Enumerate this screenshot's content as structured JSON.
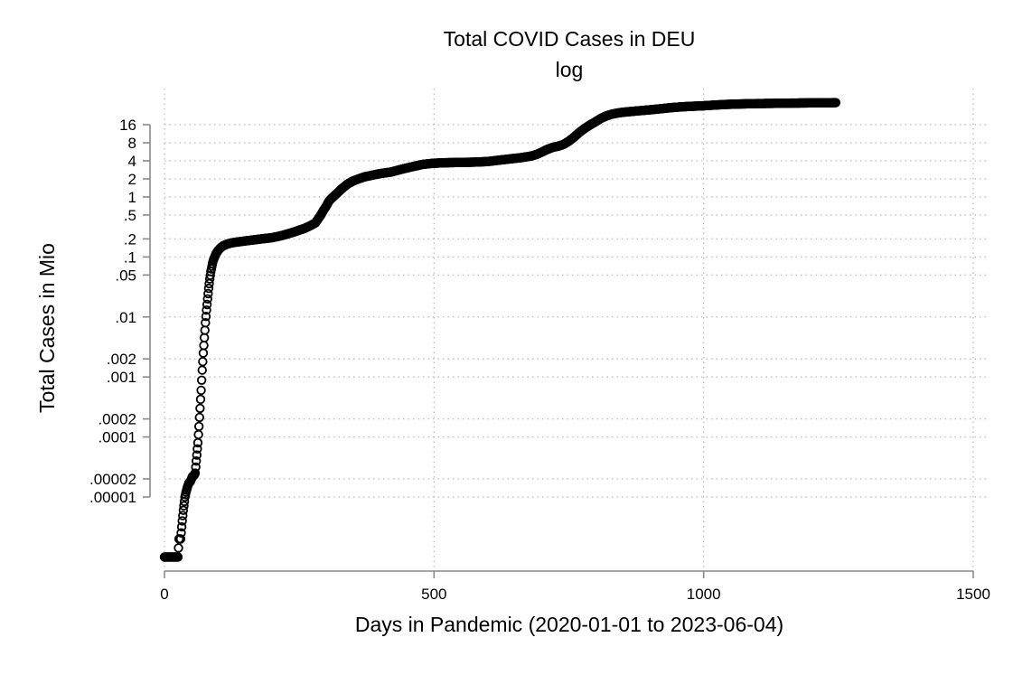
{
  "chart_data": {
    "type": "scatter",
    "title": "Total COVID Cases in DEU",
    "subtitle": "log",
    "xlabel": "Days in Pandemic (2020-01-01 to 2023-06-04)",
    "ylabel": "Total Cases in Mio",
    "xlim": [
      0,
      1500
    ],
    "ylog": true,
    "x_ticks": [
      {
        "value": 0,
        "label": "0"
      },
      {
        "value": 500,
        "label": "500"
      },
      {
        "value": 1000,
        "label": "1000"
      },
      {
        "value": 1500,
        "label": "1500"
      }
    ],
    "y_ticks": [
      {
        "value": 1e-05,
        "label": ".00001"
      },
      {
        "value": 2e-05,
        "label": ".00002"
      },
      {
        "value": 0.0001,
        "label": ".0001"
      },
      {
        "value": 0.0002,
        "label": ".0002"
      },
      {
        "value": 0.001,
        "label": ".001"
      },
      {
        "value": 0.002,
        "label": ".002"
      },
      {
        "value": 0.01,
        "label": ".01"
      },
      {
        "value": 0.05,
        "label": ".05"
      },
      {
        "value": 0.1,
        "label": ".1"
      },
      {
        "value": 0.2,
        "label": ".2"
      },
      {
        "value": 0.5,
        "label": ".5"
      },
      {
        "value": 1,
        "label": "1"
      },
      {
        "value": 2,
        "label": "2"
      },
      {
        "value": 4,
        "label": "4"
      },
      {
        "value": 8,
        "label": "8"
      },
      {
        "value": 16,
        "label": "16"
      }
    ],
    "grid": true,
    "marker": "hollow-circle",
    "series": [
      {
        "x": [
          0,
          5,
          10,
          15,
          20,
          25,
          27,
          30,
          33,
          35,
          38,
          40,
          43,
          45,
          48,
          50,
          52,
          55,
          57,
          60,
          62,
          64,
          66,
          68,
          70,
          72,
          74,
          76,
          78,
          80,
          82,
          84,
          86,
          88,
          90,
          93,
          96,
          100,
          105,
          110,
          115,
          120,
          130,
          140,
          150,
          160,
          180,
          200,
          220,
          240,
          260,
          270,
          280,
          285,
          290,
          295,
          300,
          305,
          310,
          320,
          330,
          340,
          350,
          360,
          370,
          380,
          390,
          400,
          420,
          440,
          460,
          480,
          500,
          520,
          540,
          560,
          580,
          600,
          620,
          640,
          660,
          680,
          690,
          700,
          710,
          720,
          730,
          740,
          750,
          760,
          770,
          780,
          790,
          800,
          810,
          820,
          830,
          840,
          850,
          860,
          870,
          880,
          890,
          900,
          920,
          940,
          960,
          980,
          1000,
          1020,
          1040,
          1060,
          1080,
          1100,
          1120,
          1140,
          1160,
          1180,
          1200,
          1220,
          1245
        ],
        "y": [
          1e-06,
          1e-06,
          1e-06,
          1e-06,
          1e-06,
          1e-06,
          2e-06,
          2e-06,
          4e-06,
          6e-06,
          1e-05,
          1.2e-05,
          1.5e-05,
          1.7e-05,
          1.8e-05,
          2e-05,
          2.2e-05,
          2.3e-05,
          2.5e-05,
          5e-05,
          8e-05,
          0.00015,
          0.0003,
          0.0006,
          0.0013,
          0.0025,
          0.0045,
          0.008,
          0.013,
          0.02,
          0.03,
          0.043,
          0.057,
          0.07,
          0.085,
          0.1,
          0.115,
          0.13,
          0.145,
          0.155,
          0.162,
          0.168,
          0.175,
          0.18,
          0.185,
          0.19,
          0.2,
          0.21,
          0.23,
          0.26,
          0.3,
          0.33,
          0.37,
          0.43,
          0.5,
          0.6,
          0.7,
          0.85,
          0.95,
          1.15,
          1.4,
          1.65,
          1.85,
          2.0,
          2.15,
          2.25,
          2.35,
          2.45,
          2.6,
          2.9,
          3.2,
          3.5,
          3.65,
          3.72,
          3.75,
          3.78,
          3.82,
          3.9,
          4.1,
          4.3,
          4.5,
          4.8,
          5.1,
          5.6,
          6.2,
          6.7,
          7.0,
          7.5,
          8.5,
          10,
          12,
          14,
          16,
          18,
          20.5,
          22.5,
          24,
          25,
          25.8,
          26.3,
          26.8,
          27.3,
          27.8,
          28.3,
          29.5,
          30.8,
          31.8,
          32.5,
          33.1,
          34,
          34.8,
          35.3,
          35.7,
          36.0,
          36.2,
          36.4,
          36.6,
          36.8,
          37.0,
          37.1,
          37.3
        ]
      }
    ]
  }
}
